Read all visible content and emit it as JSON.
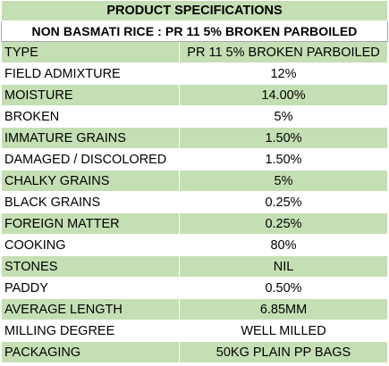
{
  "title": "PRODUCT SPECIFICATIONS",
  "subtitle": "NON BASMATI RICE : PR 11 5% BROKEN PARBOILED",
  "colors": {
    "header_green": "#c5dfb4",
    "row_green": "#c5dfb4",
    "row_white": "#ffffff"
  },
  "rows": [
    {
      "label": "TYPE",
      "value": "PR 11 5% BROKEN PARBOILED"
    },
    {
      "label": "FIELD ADMIXTURE",
      "value": "12%"
    },
    {
      "label": "MOISTURE",
      "value": "14.00%"
    },
    {
      "label": "BROKEN",
      "value": "5%"
    },
    {
      "label": "IMMATURE GRAINS",
      "value": "1.50%"
    },
    {
      "label": "DAMAGED / DISCOLORED",
      "value": "1.50%"
    },
    {
      "label": "CHALKY GRAINS",
      "value": "5%"
    },
    {
      "label": "BLACK GRAINS",
      "value": "0.25%"
    },
    {
      "label": "FOREIGN MATTER",
      "value": "0.25%"
    },
    {
      "label": "COOKING",
      "value": "80%"
    },
    {
      "label": "STONES",
      "value": "NIL"
    },
    {
      "label": "PADDY",
      "value": "0.50%"
    },
    {
      "label": "AVERAGE LENGTH",
      "value": "6.85MM"
    },
    {
      "label": "MILLING DEGREE",
      "value": "WELL MILLED"
    },
    {
      "label": "PACKAGING",
      "value": "50KG PLAIN PP BAGS"
    }
  ]
}
